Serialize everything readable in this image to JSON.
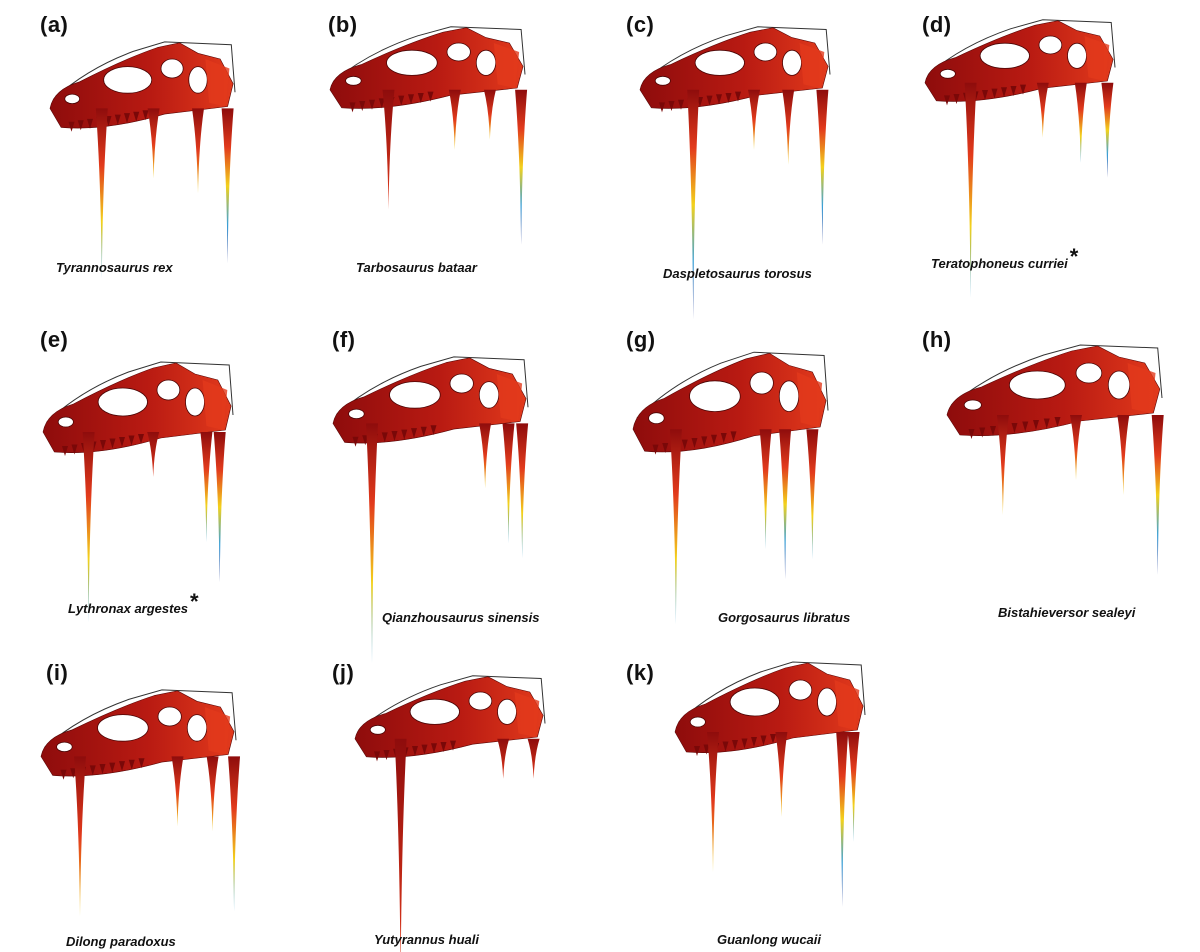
{
  "figure": {
    "colors": {
      "stress_low": "#8e0c0c",
      "stress_mid": "#e23a1c",
      "stress_high": "#f3d21c",
      "stress_peak": "#3aa0d8",
      "stress_max": "#1d2f8f",
      "outline": "#333333"
    },
    "panels": [
      {
        "letter": "(a)",
        "species": "Tyrannosaurus rex",
        "marker": ""
      },
      {
        "letter": "(b)",
        "species": "Tarbosaurus bataar",
        "marker": ""
      },
      {
        "letter": "(c)",
        "species": "Daspletosaurus torosus",
        "marker": ""
      },
      {
        "letter": "(d)",
        "species": "Teratophoneus curriei",
        "marker": "*"
      },
      {
        "letter": "(e)",
        "species": "Lythronax argestes",
        "marker": "*"
      },
      {
        "letter": "(f)",
        "species": "Qianzhousaurus sinensis",
        "marker": ""
      },
      {
        "letter": "(g)",
        "species": "Gorgosaurus libratus",
        "marker": ""
      },
      {
        "letter": "(h)",
        "species": "Bistahieversor sealeyi",
        "marker": ""
      },
      {
        "letter": "(i)",
        "species": "Dilong paradoxus",
        "marker": ""
      },
      {
        "letter": "(j)",
        "species": "Yutyrannus huali",
        "marker": ""
      },
      {
        "letter": "(k)",
        "species": "Guanlong wucaii",
        "marker": ""
      }
    ]
  }
}
